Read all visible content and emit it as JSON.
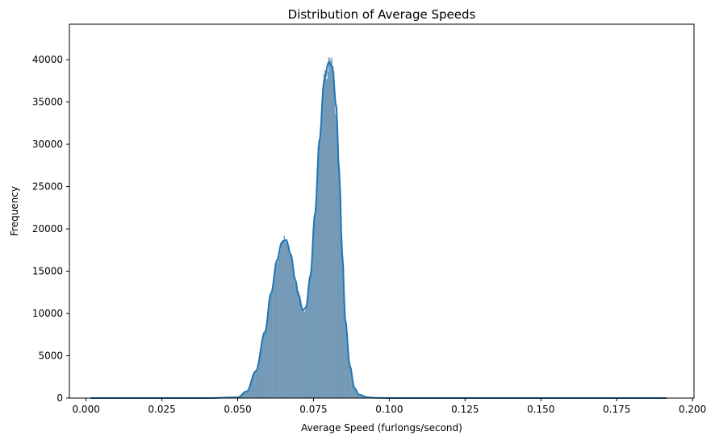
{
  "chart_data": {
    "type": "histogram",
    "title": "Distribution of Average Speeds",
    "xlabel": "Average Speed (furlongs/second)",
    "ylabel": "Frequency",
    "xlim": [
      -0.0055,
      0.2005
    ],
    "ylim": [
      0,
      44200
    ],
    "x_ticks": [
      0.0,
      0.025,
      0.05,
      0.075,
      0.1,
      0.125,
      0.15,
      0.175,
      0.2
    ],
    "x_tick_labels": [
      "0.000",
      "0.025",
      "0.050",
      "0.075",
      "0.100",
      "0.125",
      "0.150",
      "0.175",
      "0.200"
    ],
    "y_ticks": [
      0,
      5000,
      10000,
      15000,
      20000,
      25000,
      30000,
      35000,
      40000
    ],
    "y_tick_labels": [
      "0",
      "5000",
      "10000",
      "15000",
      "20000",
      "25000",
      "30000",
      "35000",
      "40000"
    ],
    "data_range": [
      0.0015,
      0.1915
    ],
    "kde_curve": {
      "x": [
        0.0015,
        0.04,
        0.05,
        0.053,
        0.056,
        0.059,
        0.061,
        0.063,
        0.0645,
        0.066,
        0.0675,
        0.069,
        0.07,
        0.0715,
        0.0725,
        0.074,
        0.0755,
        0.077,
        0.0785,
        0.08,
        0.0812,
        0.0825,
        0.0835,
        0.0845,
        0.0855,
        0.087,
        0.0885,
        0.09,
        0.093,
        0.096,
        0.1,
        0.11,
        0.1915
      ],
      "y": [
        0,
        0,
        80,
        800,
        3200,
        7800,
        12400,
        16300,
        18400,
        18700,
        17000,
        14000,
        12200,
        10400,
        10700,
        14500,
        21800,
        30500,
        37500,
        39700,
        39200,
        34500,
        26500,
        17000,
        9200,
        3800,
        1200,
        400,
        80,
        20,
        0,
        0,
        0
      ]
    },
    "colors": {
      "bar_fill": "#7399b6",
      "bar_edge": "#6a93b3",
      "kde_line": "#1f77b4",
      "axis": "#000000"
    },
    "grid": false,
    "legend": "none"
  }
}
